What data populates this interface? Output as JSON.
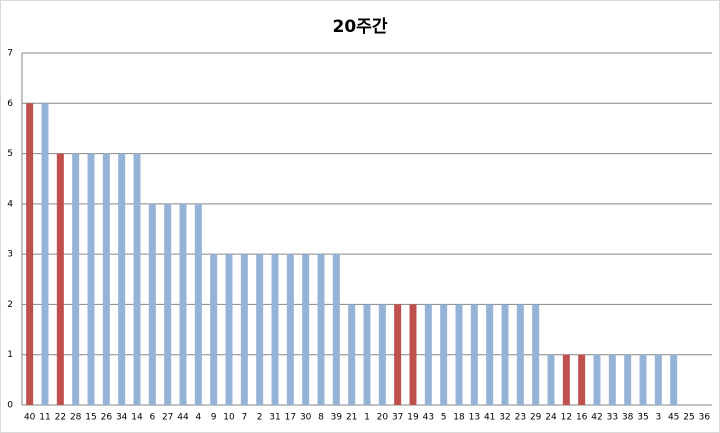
{
  "chart_data": {
    "type": "bar",
    "title": "20주간",
    "categories": [
      "40",
      "11",
      "22",
      "28",
      "15",
      "26",
      "34",
      "14",
      "6",
      "27",
      "44",
      "4",
      "9",
      "10",
      "7",
      "2",
      "31",
      "17",
      "30",
      "8",
      "39",
      "21",
      "1",
      "20",
      "37",
      "19",
      "43",
      "5",
      "18",
      "13",
      "41",
      "32",
      "23",
      "29",
      "24",
      "12",
      "16",
      "42",
      "33",
      "38",
      "35",
      "3",
      "45",
      "25",
      "36"
    ],
    "values": [
      6,
      6,
      5,
      5,
      5,
      5,
      5,
      5,
      4,
      4,
      4,
      4,
      3,
      3,
      3,
      3,
      3,
      3,
      3,
      3,
      3,
      2,
      2,
      2,
      2,
      2,
      2,
      2,
      2,
      2,
      2,
      2,
      2,
      2,
      1,
      1,
      1,
      1,
      1,
      1,
      1,
      1,
      1,
      0,
      0
    ],
    "colors": [
      "#c0504d",
      "#95b3d7",
      "#c0504d",
      "#95b3d7",
      "#95b3d7",
      "#95b3d7",
      "#95b3d7",
      "#95b3d7",
      "#95b3d7",
      "#95b3d7",
      "#95b3d7",
      "#95b3d7",
      "#95b3d7",
      "#95b3d7",
      "#95b3d7",
      "#95b3d7",
      "#95b3d7",
      "#95b3d7",
      "#95b3d7",
      "#95b3d7",
      "#95b3d7",
      "#95b3d7",
      "#95b3d7",
      "#95b3d7",
      "#c0504d",
      "#c0504d",
      "#95b3d7",
      "#95b3d7",
      "#95b3d7",
      "#95b3d7",
      "#95b3d7",
      "#95b3d7",
      "#95b3d7",
      "#95b3d7",
      "#95b3d7",
      "#c0504d",
      "#c0504d",
      "#95b3d7",
      "#95b3d7",
      "#95b3d7",
      "#95b3d7",
      "#95b3d7",
      "#95b3d7",
      "#95b3d7",
      "#95b3d7"
    ],
    "ylim": [
      0,
      7
    ],
    "yticks": [
      0,
      1,
      2,
      3,
      4,
      5,
      6,
      7
    ],
    "grid": true
  }
}
